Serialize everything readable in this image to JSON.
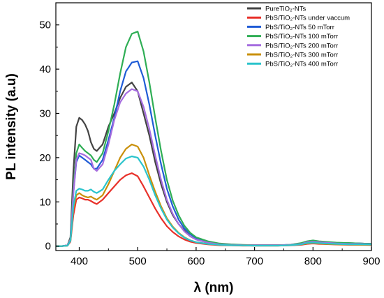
{
  "chart_data": {
    "type": "line",
    "xlabel": "λ (nm)",
    "ylabel": "PL intensity (a.u)",
    "xlim": [
      360,
      900
    ],
    "ylim": [
      -1,
      55
    ],
    "xticks": [
      400,
      500,
      600,
      700,
      800,
      900
    ],
    "yticks": [
      0,
      10,
      20,
      30,
      40,
      50
    ],
    "legend_position": "top-right",
    "grid": false,
    "x": [
      360,
      370,
      380,
      385,
      390,
      395,
      400,
      405,
      410,
      415,
      420,
      425,
      430,
      440,
      450,
      460,
      470,
      480,
      490,
      500,
      510,
      520,
      530,
      540,
      550,
      560,
      570,
      580,
      590,
      600,
      620,
      640,
      660,
      680,
      700,
      720,
      740,
      760,
      780,
      790,
      800,
      810,
      820,
      840,
      860,
      880,
      900
    ],
    "series": [
      {
        "name": "PureTiO₂-NTs",
        "color": "#444444",
        "values": [
          0,
          0,
          0.2,
          2,
          17,
          27,
          29,
          28.5,
          27.5,
          26,
          23.5,
          22,
          21.5,
          23,
          27,
          30,
          33.5,
          36,
          37,
          35,
          30,
          25,
          19,
          14,
          10,
          7,
          5,
          3.5,
          2.2,
          1.5,
          0.8,
          0.4,
          0.3,
          0.2,
          0.2,
          0.2,
          0.2,
          0.3,
          0.6,
          1,
          1.2,
          1,
          0.9,
          0.7,
          0.7,
          0.6,
          0.5
        ]
      },
      {
        "name": "PbS/TiO₂-NTs under vaccum",
        "color": "#e8312a",
        "values": [
          0,
          0,
          0.1,
          1,
          7,
          10.5,
          11,
          10.8,
          10.5,
          10.5,
          10.2,
          9.8,
          9.5,
          10.5,
          12,
          13.5,
          15,
          16,
          16.5,
          15.8,
          13.5,
          11,
          8.5,
          6.3,
          4.5,
          3.2,
          2.2,
          1.5,
          1,
          0.7,
          0.4,
          0.2,
          0.15,
          0.1,
          0.1,
          0.1,
          0.1,
          0.15,
          0.3,
          0.5,
          0.6,
          0.5,
          0.45,
          0.35,
          0.3,
          0.3,
          0.25
        ]
      },
      {
        "name": "PbS/TiO₂-NTs 50 mTorr",
        "color": "#1f5cd6",
        "values": [
          0,
          0,
          0.2,
          1.5,
          12,
          19,
          20.5,
          20,
          19.5,
          19,
          18.5,
          17.5,
          17.5,
          19.5,
          24,
          29,
          35,
          39.5,
          41.5,
          41.8,
          38,
          32,
          25,
          18.5,
          13,
          9,
          6,
          4,
          2.7,
          1.8,
          1,
          0.5,
          0.35,
          0.25,
          0.2,
          0.2,
          0.2,
          0.3,
          0.6,
          1,
          1.2,
          1,
          0.9,
          0.7,
          0.6,
          0.6,
          0.5
        ]
      },
      {
        "name": "PbS/TiO₂-NTs 100 mTorr",
        "color": "#2fae55",
        "values": [
          0,
          0,
          0.2,
          1.6,
          13,
          21,
          23,
          22.2,
          21.5,
          21,
          20.5,
          19.5,
          19,
          21,
          26,
          32,
          39,
          45,
          48,
          48.5,
          44,
          37,
          29,
          21.5,
          15,
          10.3,
          7,
          4.6,
          3,
          2,
          1.1,
          0.6,
          0.4,
          0.3,
          0.2,
          0.2,
          0.2,
          0.3,
          0.7,
          1.1,
          1.3,
          1.1,
          1,
          0.8,
          0.7,
          0.6,
          0.5
        ]
      },
      {
        "name": "PbS/TiO₂-NTs 200 mTorr",
        "color": "#a66ddf",
        "values": [
          0,
          0,
          0.2,
          1.5,
          12,
          19.5,
          21,
          20.8,
          20.5,
          20,
          19.5,
          17.5,
          17,
          18.5,
          23,
          28.5,
          32.5,
          34.5,
          35.5,
          35,
          31.5,
          26.5,
          20.5,
          15,
          10.5,
          7.3,
          5,
          3.3,
          2.2,
          1.5,
          0.8,
          0.4,
          0.3,
          0.2,
          0.2,
          0.2,
          0.2,
          0.3,
          0.5,
          0.9,
          1,
          0.9,
          0.8,
          0.6,
          0.5,
          0.5,
          0.4
        ]
      },
      {
        "name": "PbS/TiO₂-NTs 300 mTorr",
        "color": "#c9900a",
        "values": [
          0,
          0,
          0.1,
          1.2,
          8.5,
          11.5,
          12,
          11.5,
          11.2,
          11,
          11.2,
          10.8,
          10.5,
          11.5,
          14,
          17,
          20,
          22,
          23,
          22.5,
          20,
          16,
          12.3,
          9,
          6.3,
          4.4,
          3,
          2,
          1.3,
          0.9,
          0.5,
          0.3,
          0.2,
          0.15,
          0.1,
          0.1,
          0.1,
          0.2,
          0.4,
          0.6,
          0.7,
          0.6,
          0.5,
          0.4,
          0.35,
          0.3,
          0.3
        ]
      },
      {
        "name": "PbS/TiO₂-NTs 400 mTorr",
        "color": "#2bc4cc",
        "values": [
          0,
          0,
          0.1,
          1.2,
          9,
          12.5,
          13,
          12.8,
          12.5,
          12.5,
          12.8,
          12.3,
          12,
          12.8,
          15,
          17,
          18.5,
          19.8,
          20.3,
          20,
          18,
          15,
          11.5,
          8.5,
          6,
          4.2,
          2.9,
          1.9,
          1.3,
          0.9,
          0.5,
          0.3,
          0.2,
          0.15,
          0.1,
          0.1,
          0.1,
          0.2,
          0.4,
          0.7,
          0.8,
          0.7,
          0.6,
          0.5,
          0.4,
          0.4,
          0.35
        ]
      }
    ]
  }
}
